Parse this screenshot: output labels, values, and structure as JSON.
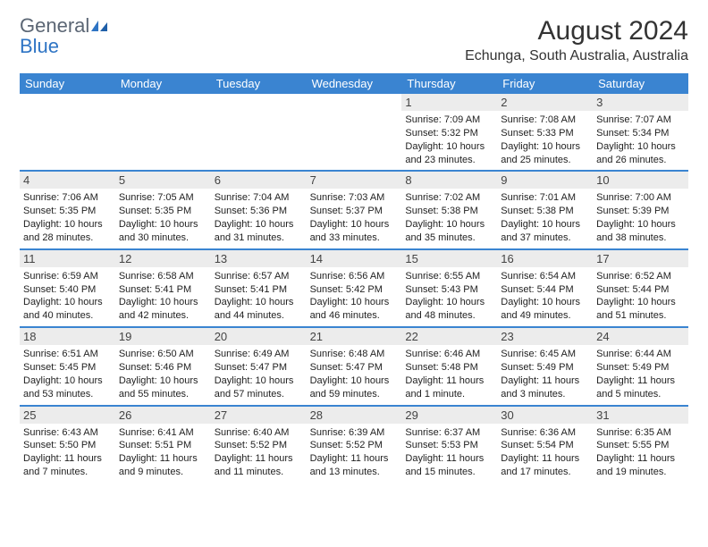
{
  "logo": {
    "word1": "General",
    "word2": "Blue"
  },
  "title": "August 2024",
  "subtitle": "Echunga, South Australia, Australia",
  "colors": {
    "header_bg": "#3a84d1",
    "daynum_bg": "#ececec",
    "border": "#3a84d1",
    "text": "#222222",
    "logo_gray": "#5b6674",
    "logo_blue": "#2e74c4"
  },
  "weekdays": [
    "Sunday",
    "Monday",
    "Tuesday",
    "Wednesday",
    "Thursday",
    "Friday",
    "Saturday"
  ],
  "weeks": [
    [
      null,
      null,
      null,
      null,
      {
        "n": "1",
        "sr": "7:09 AM",
        "ss": "5:32 PM",
        "dl": "10 hours and 23 minutes."
      },
      {
        "n": "2",
        "sr": "7:08 AM",
        "ss": "5:33 PM",
        "dl": "10 hours and 25 minutes."
      },
      {
        "n": "3",
        "sr": "7:07 AM",
        "ss": "5:34 PM",
        "dl": "10 hours and 26 minutes."
      }
    ],
    [
      {
        "n": "4",
        "sr": "7:06 AM",
        "ss": "5:35 PM",
        "dl": "10 hours and 28 minutes."
      },
      {
        "n": "5",
        "sr": "7:05 AM",
        "ss": "5:35 PM",
        "dl": "10 hours and 30 minutes."
      },
      {
        "n": "6",
        "sr": "7:04 AM",
        "ss": "5:36 PM",
        "dl": "10 hours and 31 minutes."
      },
      {
        "n": "7",
        "sr": "7:03 AM",
        "ss": "5:37 PM",
        "dl": "10 hours and 33 minutes."
      },
      {
        "n": "8",
        "sr": "7:02 AM",
        "ss": "5:38 PM",
        "dl": "10 hours and 35 minutes."
      },
      {
        "n": "9",
        "sr": "7:01 AM",
        "ss": "5:38 PM",
        "dl": "10 hours and 37 minutes."
      },
      {
        "n": "10",
        "sr": "7:00 AM",
        "ss": "5:39 PM",
        "dl": "10 hours and 38 minutes."
      }
    ],
    [
      {
        "n": "11",
        "sr": "6:59 AM",
        "ss": "5:40 PM",
        "dl": "10 hours and 40 minutes."
      },
      {
        "n": "12",
        "sr": "6:58 AM",
        "ss": "5:41 PM",
        "dl": "10 hours and 42 minutes."
      },
      {
        "n": "13",
        "sr": "6:57 AM",
        "ss": "5:41 PM",
        "dl": "10 hours and 44 minutes."
      },
      {
        "n": "14",
        "sr": "6:56 AM",
        "ss": "5:42 PM",
        "dl": "10 hours and 46 minutes."
      },
      {
        "n": "15",
        "sr": "6:55 AM",
        "ss": "5:43 PM",
        "dl": "10 hours and 48 minutes."
      },
      {
        "n": "16",
        "sr": "6:54 AM",
        "ss": "5:44 PM",
        "dl": "10 hours and 49 minutes."
      },
      {
        "n": "17",
        "sr": "6:52 AM",
        "ss": "5:44 PM",
        "dl": "10 hours and 51 minutes."
      }
    ],
    [
      {
        "n": "18",
        "sr": "6:51 AM",
        "ss": "5:45 PM",
        "dl": "10 hours and 53 minutes."
      },
      {
        "n": "19",
        "sr": "6:50 AM",
        "ss": "5:46 PM",
        "dl": "10 hours and 55 minutes."
      },
      {
        "n": "20",
        "sr": "6:49 AM",
        "ss": "5:47 PM",
        "dl": "10 hours and 57 minutes."
      },
      {
        "n": "21",
        "sr": "6:48 AM",
        "ss": "5:47 PM",
        "dl": "10 hours and 59 minutes."
      },
      {
        "n": "22",
        "sr": "6:46 AM",
        "ss": "5:48 PM",
        "dl": "11 hours and 1 minute."
      },
      {
        "n": "23",
        "sr": "6:45 AM",
        "ss": "5:49 PM",
        "dl": "11 hours and 3 minutes."
      },
      {
        "n": "24",
        "sr": "6:44 AM",
        "ss": "5:49 PM",
        "dl": "11 hours and 5 minutes."
      }
    ],
    [
      {
        "n": "25",
        "sr": "6:43 AM",
        "ss": "5:50 PM",
        "dl": "11 hours and 7 minutes."
      },
      {
        "n": "26",
        "sr": "6:41 AM",
        "ss": "5:51 PM",
        "dl": "11 hours and 9 minutes."
      },
      {
        "n": "27",
        "sr": "6:40 AM",
        "ss": "5:52 PM",
        "dl": "11 hours and 11 minutes."
      },
      {
        "n": "28",
        "sr": "6:39 AM",
        "ss": "5:52 PM",
        "dl": "11 hours and 13 minutes."
      },
      {
        "n": "29",
        "sr": "6:37 AM",
        "ss": "5:53 PM",
        "dl": "11 hours and 15 minutes."
      },
      {
        "n": "30",
        "sr": "6:36 AM",
        "ss": "5:54 PM",
        "dl": "11 hours and 17 minutes."
      },
      {
        "n": "31",
        "sr": "6:35 AM",
        "ss": "5:55 PM",
        "dl": "11 hours and 19 minutes."
      }
    ]
  ],
  "labels": {
    "sunrise": "Sunrise: ",
    "sunset": "Sunset: ",
    "daylight": "Daylight: "
  }
}
